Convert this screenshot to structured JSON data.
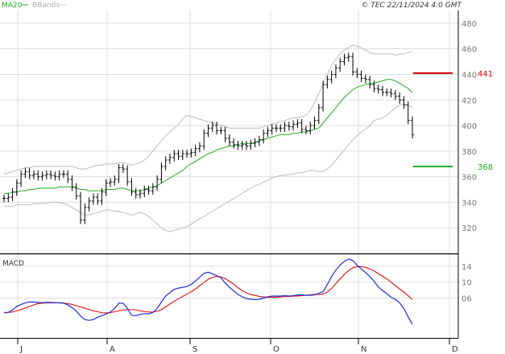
{
  "header": {
    "ma_label": "MA20",
    "bb_label": "BBands",
    "copyright": "© TEC 22/11/2024 4:0 GMT"
  },
  "colors": {
    "ma": "#22aa22",
    "bbands": "#bbbbbb",
    "price_bar": "#000000",
    "resistance": "#cc0000",
    "support": "#22aa22",
    "macd_line": "#1f2fd0",
    "signal_line": "#dd2020",
    "grid": "#dddddd",
    "tick_text": "#777777"
  },
  "chart_data": [
    {
      "type": "ohlc",
      "title": "",
      "ylim": [
        300,
        490
      ],
      "y_ticks": [
        320,
        340,
        360,
        380,
        400,
        420,
        440,
        460,
        480
      ],
      "x_ticks": [
        "J",
        "A",
        "S",
        "O",
        "N",
        "D"
      ],
      "levels": [
        {
          "label": "441",
          "value": 441,
          "color": "#cc0000"
        },
        {
          "label": "368",
          "value": 368,
          "color": "#22aa22"
        }
      ],
      "series": [
        {
          "name": "price",
          "values": [
            343,
            344,
            348,
            355,
            362,
            364,
            361,
            362,
            360,
            361,
            362,
            361,
            360,
            362,
            362,
            358,
            352,
            345,
            326,
            336,
            341,
            344,
            341,
            348,
            355,
            356,
            358,
            367,
            366,
            356,
            348,
            346,
            347,
            350,
            349,
            352,
            358,
            368,
            373,
            375,
            378,
            376,
            378,
            378,
            379,
            382,
            384,
            394,
            398,
            400,
            396,
            396,
            390,
            387,
            385,
            384,
            385,
            384,
            386,
            387,
            389,
            394,
            396,
            398,
            398,
            398,
            400,
            399,
            401,
            402,
            397,
            396,
            400,
            404,
            414,
            432,
            436,
            440,
            445,
            450,
            453,
            454,
            442,
            440,
            437,
            436,
            432,
            429,
            428,
            426,
            426,
            425,
            423,
            420,
            416,
            404,
            393
          ]
        },
        {
          "name": "MA20",
          "values": [
            347,
            347,
            348,
            348,
            349,
            349,
            350,
            350,
            351,
            351,
            351,
            351,
            351,
            352,
            352,
            352,
            352,
            351,
            350,
            350,
            349,
            349,
            349,
            349,
            350,
            350,
            350,
            351,
            351,
            350,
            349,
            349,
            349,
            350,
            351,
            352,
            353,
            355,
            357,
            359,
            361,
            363,
            365,
            368,
            370,
            372,
            374,
            376,
            378,
            379,
            381,
            382,
            383,
            384,
            384,
            385,
            386,
            386,
            386,
            387,
            388,
            389,
            390,
            391,
            392,
            393,
            393,
            393,
            394,
            394,
            395,
            395,
            396,
            397,
            398,
            402,
            406,
            410,
            414,
            418,
            422,
            425,
            428,
            430,
            431,
            432,
            433,
            433,
            434,
            435,
            436,
            436,
            435,
            433,
            431,
            429,
            426
          ]
        },
        {
          "name": "BB upper",
          "values": [
            362,
            363,
            364,
            365,
            366,
            367,
            367,
            368,
            368,
            368,
            368,
            368,
            368,
            368,
            368,
            368,
            368,
            367,
            366,
            366,
            367,
            368,
            369,
            369,
            370,
            370,
            370,
            371,
            371,
            370,
            369,
            370,
            371,
            373,
            376,
            380,
            384,
            388,
            392,
            395,
            398,
            401,
            405,
            408,
            407,
            406,
            405,
            404,
            403,
            402,
            401,
            400,
            399,
            398,
            398,
            398,
            398,
            398,
            398,
            398,
            398,
            399,
            400,
            401,
            402,
            403,
            404,
            405,
            406,
            406,
            407,
            408,
            412,
            418,
            425,
            432,
            440,
            447,
            452,
            456,
            459,
            461,
            463,
            462,
            461,
            459,
            457,
            456,
            456,
            456,
            456,
            456,
            455,
            456,
            456,
            457,
            458
          ]
        },
        {
          "name": "BB lower",
          "values": [
            337,
            337,
            337,
            338,
            338,
            338,
            338,
            339,
            339,
            339,
            339,
            340,
            340,
            340,
            339,
            338,
            336,
            334,
            332,
            330,
            330,
            331,
            332,
            333,
            334,
            334,
            333,
            333,
            332,
            331,
            330,
            331,
            332,
            331,
            329,
            326,
            323,
            320,
            318,
            317,
            318,
            319,
            320,
            321,
            323,
            325,
            327,
            329,
            331,
            333,
            335,
            337,
            339,
            341,
            343,
            345,
            347,
            349,
            351,
            353,
            354,
            356,
            357,
            359,
            360,
            361,
            361,
            362,
            362,
            363,
            363,
            364,
            365,
            365,
            364,
            364,
            366,
            369,
            373,
            377,
            381,
            385,
            389,
            392,
            395,
            397,
            400,
            404,
            405,
            406,
            408,
            411,
            414,
            416,
            417,
            416,
            414
          ]
        }
      ]
    },
    {
      "type": "line",
      "title": "MACD",
      "ylim": [
        -4,
        17
      ],
      "y_ticks": [
        6,
        10,
        14
      ],
      "y_tick_labels": [
        "06",
        "10",
        "14"
      ],
      "series": [
        {
          "name": "MACD",
          "values": [
            2.3,
            2.4,
            3,
            3.9,
            4.4,
            4.8,
            5,
            5,
            4.9,
            4.8,
            4.9,
            4.9,
            4.8,
            4.8,
            4.7,
            4.3,
            3.6,
            2.7,
            1.5,
            0.6,
            0.4,
            0.6,
            1.2,
            1.6,
            2,
            2.5,
            3.4,
            4.7,
            4.7,
            3.4,
            1.7,
            1.6,
            1.9,
            2.1,
            2,
            2.4,
            3.4,
            5,
            6.5,
            7.4,
            8.2,
            8.5,
            8.7,
            8.9,
            9.4,
            10.3,
            11.2,
            12.2,
            12.5,
            12.1,
            11.6,
            11.1,
            9.8,
            8.7,
            7.8,
            6.9,
            6.3,
            5.9,
            5.7,
            5.6,
            5.7,
            6,
            6.3,
            6.5,
            6.5,
            6.5,
            6.6,
            6.5,
            6.6,
            6.8,
            6.8,
            6.7,
            6.7,
            6.8,
            7.2,
            7.6,
            9.4,
            11.4,
            13,
            14.3,
            15.2,
            15.8,
            15.4,
            14.3,
            13.3,
            12.4,
            11.4,
            10.2,
            8.8,
            7.9,
            7.1,
            6.2,
            5.7,
            4.8,
            3.4,
            1.3,
            -0.6
          ]
        },
        {
          "name": "Signal",
          "values": [
            2.4,
            2.4,
            2.5,
            2.8,
            3.1,
            3.5,
            3.9,
            4.3,
            4.6,
            4.7,
            4.8,
            4.8,
            4.8,
            4.8,
            4.7,
            4.6,
            4.4,
            4.1,
            3.8,
            3.5,
            3.1,
            2.8,
            2.6,
            2.3,
            2.3,
            2.3,
            2.6,
            2.8,
            3,
            3.1,
            3.1,
            3,
            2.8,
            2.6,
            2.5,
            2.5,
            2.7,
            3.1,
            3.8,
            4.5,
            5.2,
            5.8,
            6.4,
            7,
            7.6,
            8.3,
            9.1,
            9.9,
            10.7,
            11.2,
            11.4,
            11.3,
            10.9,
            10.2,
            9.5,
            8.6,
            7.9,
            7.3,
            6.9,
            6.7,
            6.4,
            6.3,
            6.2,
            6.2,
            6.2,
            6.3,
            6.4,
            6.4,
            6.5,
            6.5,
            6.6,
            6.7,
            6.8,
            6.9,
            6.9,
            7,
            7.5,
            8.4,
            9.6,
            10.8,
            11.9,
            12.9,
            13.6,
            13.9,
            13.9,
            13.7,
            13.3,
            12.8,
            12.1,
            11.5,
            10.8,
            10,
            9.1,
            8.3,
            7.5,
            6.6,
            5.6
          ]
        }
      ]
    }
  ]
}
